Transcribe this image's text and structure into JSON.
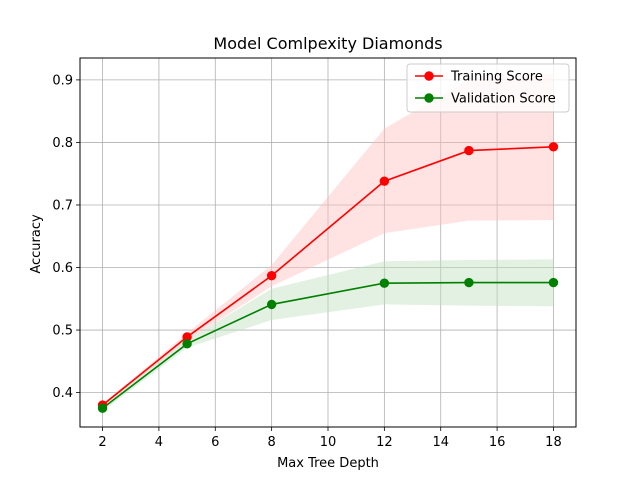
{
  "chart_data": {
    "type": "line",
    "title": "Model Comlpexity Diamonds",
    "xlabel": "Max Tree Depth",
    "ylabel": "Accuracy",
    "xlim": [
      1.2,
      18.8
    ],
    "ylim": [
      0.345,
      0.935
    ],
    "xticks": [
      2,
      4,
      6,
      8,
      10,
      12,
      14,
      16,
      18
    ],
    "yticks": [
      0.4,
      0.5,
      0.6,
      0.7,
      0.8,
      0.9
    ],
    "xtick_labels": [
      "2",
      "4",
      "6",
      "8",
      "10",
      "12",
      "14",
      "16",
      "18"
    ],
    "ytick_labels": [
      "0.4",
      "0.5",
      "0.6",
      "0.7",
      "0.8",
      "0.9"
    ],
    "grid": true,
    "legend_position": "top-right",
    "x": [
      2,
      5,
      8,
      12,
      15,
      18
    ],
    "series": [
      {
        "name": "Training Score",
        "color": "#ff0000",
        "fill_color": "#ffbfbf",
        "values": [
          0.38,
          0.489,
          0.587,
          0.738,
          0.787,
          0.793
        ],
        "band_lower": [
          0.378,
          0.483,
          0.57,
          0.655,
          0.675,
          0.676
        ],
        "band_upper": [
          0.382,
          0.495,
          0.604,
          0.822,
          0.9,
          0.91
        ]
      },
      {
        "name": "Validation Score",
        "color": "#008000",
        "fill_color": "#bfdfbf",
        "values": [
          0.375,
          0.478,
          0.541,
          0.575,
          0.576,
          0.576
        ],
        "band_lower": [
          0.37,
          0.472,
          0.516,
          0.541,
          0.539,
          0.538
        ],
        "band_upper": [
          0.38,
          0.484,
          0.566,
          0.61,
          0.612,
          0.613
        ]
      }
    ]
  }
}
